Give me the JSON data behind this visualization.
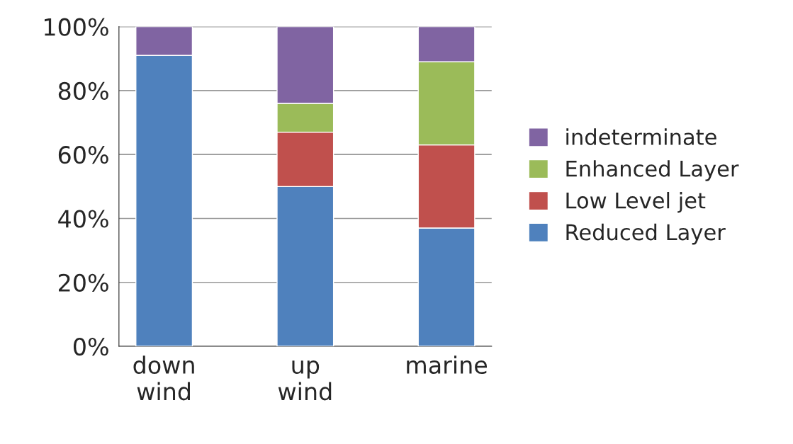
{
  "chart_data": {
    "type": "bar",
    "stacked": true,
    "categories": [
      "down wind",
      "up wind",
      "marine"
    ],
    "series": [
      {
        "name": "Reduced Layer",
        "color": "#4f81bd",
        "values": [
          91,
          50,
          37
        ]
      },
      {
        "name": "Low Level jet",
        "color": "#c0504d",
        "values": [
          0,
          17,
          26
        ]
      },
      {
        "name": "Enhanced Layer",
        "color": "#9bbb59",
        "values": [
          0,
          9,
          26
        ]
      },
      {
        "name": "indeterminate",
        "color": "#8064a2",
        "values": [
          9,
          24,
          11
        ]
      }
    ],
    "ylim": [
      0,
      100
    ],
    "yticks": [
      {
        "value": 0,
        "label": "0%"
      },
      {
        "value": 20,
        "label": "20%"
      },
      {
        "value": 40,
        "label": "40%"
      },
      {
        "value": 60,
        "label": "60%"
      },
      {
        "value": 80,
        "label": "80%"
      },
      {
        "value": 100,
        "label": "100%"
      }
    ],
    "grid": "y",
    "legend": "right"
  }
}
